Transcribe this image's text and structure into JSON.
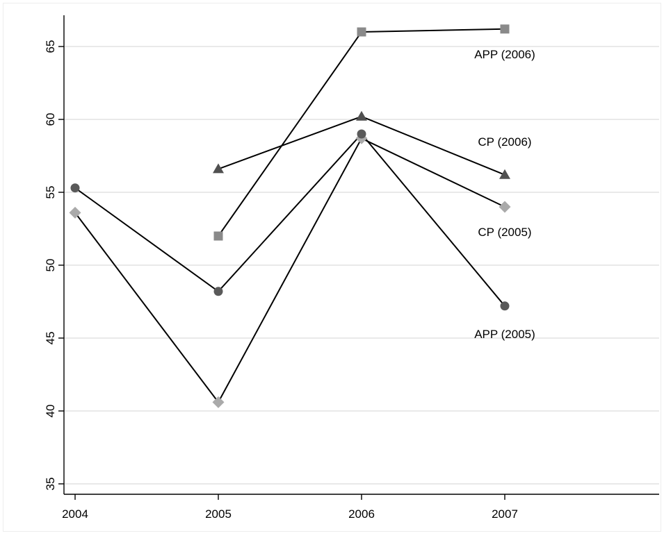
{
  "chart_data": {
    "type": "line",
    "title": "",
    "xlabel": "",
    "ylabel": "",
    "x": [
      2004,
      2005,
      2006,
      2007
    ],
    "xlim": [
      2004,
      2008
    ],
    "ylim": [
      35,
      67
    ],
    "yticks": [
      35,
      40,
      45,
      50,
      55,
      60,
      65
    ],
    "grid": true,
    "legend": "none",
    "series": [
      {
        "name": "APP (2006)",
        "marker": "square",
        "color": "#8a8a8a",
        "points": [
          [
            2005,
            52.0
          ],
          [
            2006,
            66.0
          ],
          [
            2007,
            66.2
          ]
        ]
      },
      {
        "name": "CP (2006)",
        "marker": "triangle",
        "color": "#505050",
        "points": [
          [
            2005,
            56.6
          ],
          [
            2006,
            60.2
          ],
          [
            2007,
            56.2
          ]
        ]
      },
      {
        "name": "CP (2005)",
        "marker": "diamond",
        "color": "#aaaaaa",
        "points": [
          [
            2004,
            53.6
          ],
          [
            2005,
            40.6
          ],
          [
            2006,
            58.7
          ],
          [
            2007,
            54.0
          ]
        ]
      },
      {
        "name": "APP (2005)",
        "marker": "circle",
        "color": "#5a5a5a",
        "points": [
          [
            2004,
            55.3
          ],
          [
            2005,
            48.2
          ],
          [
            2006,
            59.0
          ],
          [
            2007,
            47.2
          ]
        ]
      }
    ],
    "series_labels": [
      {
        "text": "APP (2006)",
        "x": 2007,
        "y": 64.2
      },
      {
        "text": "CP (2006)",
        "x": 2007,
        "y": 58.2
      },
      {
        "text": "CP (2005)",
        "x": 2007,
        "y": 52.0
      },
      {
        "text": "APP (2005)",
        "x": 2007,
        "y": 45.0
      }
    ]
  }
}
